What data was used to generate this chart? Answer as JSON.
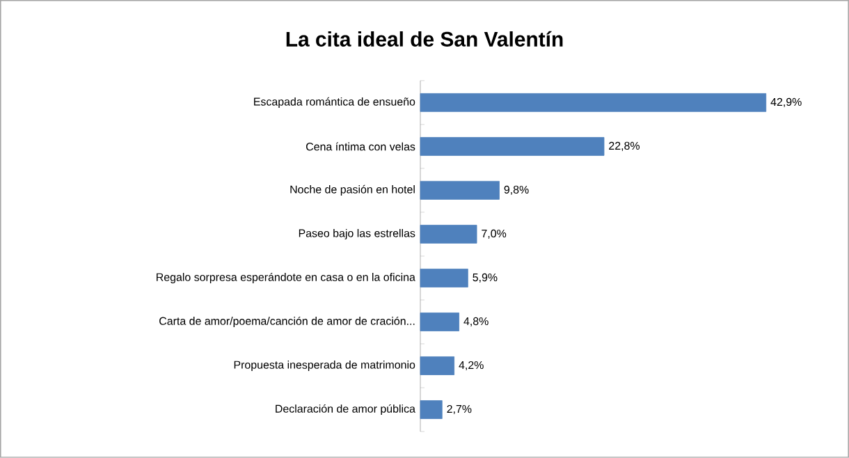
{
  "chart_data": {
    "type": "bar",
    "orientation": "horizontal",
    "relative": false,
    "title": "La cita ideal de San Valentín",
    "categories": [
      "Escapada romántica de ensueño",
      "Cena íntima con velas",
      "Noche de pasión en hotel",
      "Paseo bajo las estrellas",
      "Regalo sorpresa esperándote en casa o en la oficina",
      "Carta de amor/poema/canción de amor de cración...",
      "Propuesta inesperada de matrimonio",
      "Declaración de amor pública"
    ],
    "values": [
      42.9,
      22.8,
      9.8,
      7.0,
      5.9,
      4.8,
      4.2,
      2.7
    ],
    "value_labels": [
      "42,9%",
      "22,8%",
      "9,8%",
      "7,0%",
      "5,9%",
      "4,8%",
      "4,2%",
      "2,7%"
    ],
    "color": "#4f81bd"
  }
}
